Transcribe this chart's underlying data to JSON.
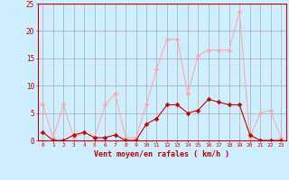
{
  "x": [
    0,
    1,
    2,
    3,
    4,
    5,
    6,
    7,
    8,
    9,
    10,
    11,
    12,
    13,
    14,
    15,
    16,
    17,
    18,
    19,
    20,
    21,
    22,
    23
  ],
  "rafales": [
    6.5,
    0.5,
    6.5,
    0.5,
    1.5,
    0.5,
    6.5,
    8.5,
    0.5,
    0.5,
    6.5,
    13.0,
    18.5,
    18.5,
    8.5,
    15.5,
    16.5,
    16.5,
    16.5,
    23.5,
    0.5,
    5.0,
    5.5,
    0.5
  ],
  "moyen": [
    1.5,
    0.0,
    0.0,
    1.0,
    1.5,
    0.5,
    0.5,
    1.0,
    0.0,
    0.0,
    3.0,
    4.0,
    6.5,
    6.5,
    5.0,
    5.5,
    7.5,
    7.0,
    6.5,
    6.5,
    1.0,
    0.0,
    0.0,
    0.0
  ],
  "color_rafales": "#ffaaaa",
  "color_moyen": "#cc0000",
  "bg_color": "#cceeff",
  "grid_color": "#aaaaaa",
  "axis_color": "#cc0000",
  "xlabel": "Vent moyen/en rafales ( km/h )",
  "ylim": [
    0,
    25
  ],
  "yticks": [
    0,
    5,
    10,
    15,
    20,
    25
  ],
  "xlim": [
    -0.5,
    23.5
  ]
}
